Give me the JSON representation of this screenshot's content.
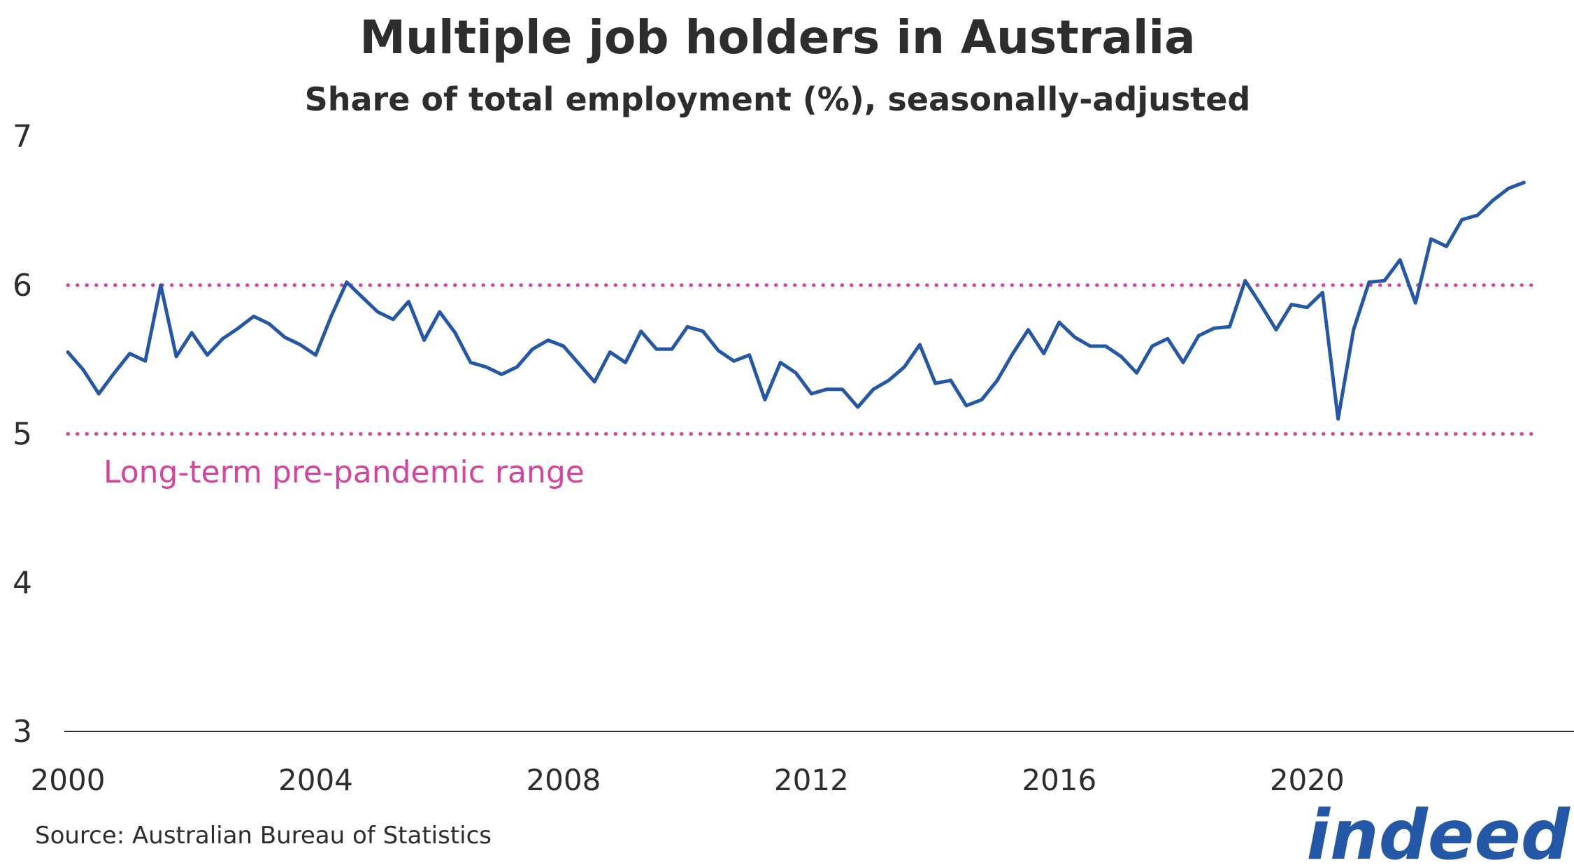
{
  "chart_data": {
    "type": "line",
    "title": "Multiple job holders in Australia",
    "subtitle": "Share of total employment (%), seasonally-adjusted",
    "xlabel": "",
    "ylabel": "",
    "xlim": [
      2000,
      2023.8
    ],
    "ylim": [
      3,
      7
    ],
    "yticks": [
      "3",
      "4",
      "5",
      "6",
      "7"
    ],
    "xticks": [
      "2000",
      "2004",
      "2008",
      "2012",
      "2016",
      "2020"
    ],
    "grid": false,
    "series": [
      {
        "name": "Share of total employment",
        "color": "#2557a7",
        "x": [
          2000.0,
          2000.25,
          2000.5,
          2000.75,
          2001.0,
          2001.25,
          2001.5,
          2001.75,
          2002.0,
          2002.25,
          2002.5,
          2002.75,
          2003.0,
          2003.25,
          2003.5,
          2003.75,
          2004.0,
          2004.25,
          2004.5,
          2004.75,
          2005.0,
          2005.25,
          2005.5,
          2005.75,
          2006.0,
          2006.25,
          2006.5,
          2006.75,
          2007.0,
          2007.25,
          2007.5,
          2007.75,
          2008.0,
          2008.25,
          2008.5,
          2008.75,
          2009.0,
          2009.25,
          2009.5,
          2009.75,
          2010.0,
          2010.25,
          2010.5,
          2010.75,
          2011.0,
          2011.25,
          2011.5,
          2011.75,
          2012.0,
          2012.25,
          2012.5,
          2012.75,
          2013.0,
          2013.25,
          2013.5,
          2013.75,
          2014.0,
          2014.25,
          2014.5,
          2014.75,
          2015.0,
          2015.25,
          2015.5,
          2015.75,
          2016.0,
          2016.25,
          2016.5,
          2016.75,
          2017.0,
          2017.25,
          2017.5,
          2017.75,
          2018.0,
          2018.25,
          2018.5,
          2018.75,
          2019.0,
          2019.25,
          2019.5,
          2019.75,
          2020.0,
          2020.25,
          2020.5,
          2020.75,
          2021.0,
          2021.25,
          2021.5,
          2021.75,
          2022.0,
          2022.25,
          2022.5,
          2022.75,
          2023.0,
          2023.25,
          2023.5
        ],
        "values": [
          5.55,
          5.43,
          5.27,
          5.41,
          5.54,
          5.49,
          6.0,
          5.52,
          5.68,
          5.53,
          5.64,
          5.71,
          5.79,
          5.74,
          5.65,
          5.6,
          5.53,
          5.79,
          6.02,
          5.92,
          5.82,
          5.77,
          5.89,
          5.63,
          5.82,
          5.68,
          5.48,
          5.45,
          5.4,
          5.45,
          5.57,
          5.63,
          5.59,
          5.47,
          5.35,
          5.55,
          5.48,
          5.69,
          5.57,
          5.57,
          5.72,
          5.69,
          5.56,
          5.49,
          5.53,
          5.23,
          5.48,
          5.41,
          5.27,
          5.3,
          5.3,
          5.18,
          5.3,
          5.36,
          5.45,
          5.6,
          5.34,
          5.36,
          5.19,
          5.23,
          5.36,
          5.54,
          5.7,
          5.54,
          5.75,
          5.65,
          5.59,
          5.59,
          5.52,
          5.41,
          5.59,
          5.64,
          5.48,
          5.66,
          5.71,
          5.72,
          6.03,
          5.87,
          5.7,
          5.87,
          5.85,
          5.95,
          5.1,
          5.7,
          6.02,
          6.03,
          6.17,
          5.88,
          6.31,
          6.26,
          6.44,
          6.47,
          6.57,
          6.65,
          6.69
        ]
      }
    ],
    "reference_lines": [
      {
        "y": 6,
        "style": "dotted",
        "color": "#d4449c"
      },
      {
        "y": 5,
        "style": "dotted",
        "color": "#d4449c"
      }
    ],
    "annotations": [
      {
        "text": "Long-term pre-pandemic range",
        "color": "#d4449c"
      }
    ],
    "source": "Source: Australian Bureau of Statistics",
    "logo": "indeed"
  }
}
